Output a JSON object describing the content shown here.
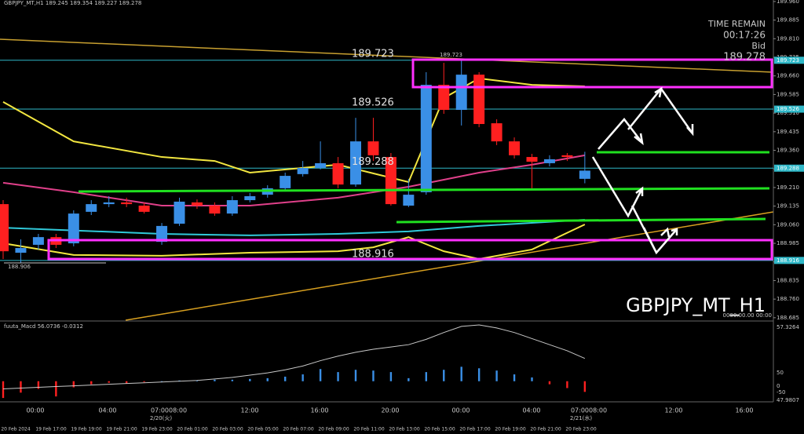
{
  "chart_data": {
    "type": "candlestick",
    "symbol": "GBPJPY_MT,H1",
    "watermark": "GBPJPY_MT_H1",
    "time_remain_label": "TIME REMAIN",
    "time_remain": "00:17:26",
    "bid_label": "Bid",
    "date_marker": "0000.00.00 00:00",
    "up_color": "#3a8fe6",
    "down_color": "#ff2020",
    "open": [
      189.143,
      188.947,
      188.979,
      189.01,
      188.985,
      189.112,
      189.143,
      189.15,
      189.137,
      188.991,
      189.064,
      189.15,
      189.137,
      189.105,
      189.159,
      189.181,
      189.207,
      189.264,
      189.289,
      189.308,
      189.222,
      189.396,
      189.333,
      189.137,
      189.191,
      189.624,
      189.523,
      189.665,
      189.469,
      189.396,
      189.333,
      189.308,
      189.34,
      189.245
    ],
    "high": [
      189.159,
      189.001,
      189.023,
      189.023,
      189.118,
      189.159,
      189.175,
      189.169,
      189.15,
      189.067,
      189.169,
      189.162,
      189.15,
      189.175,
      189.188,
      189.219,
      189.27,
      189.317,
      189.396,
      189.333,
      189.491,
      189.491,
      189.349,
      189.245,
      189.675,
      189.713,
      189.723,
      189.675,
      189.485,
      189.412,
      189.346,
      189.34,
      189.349,
      189.354
    ],
    "low": [
      188.922,
      188.906,
      188.96,
      188.966,
      188.973,
      189.099,
      189.131,
      189.131,
      189.105,
      188.979,
      189.055,
      189.124,
      189.096,
      189.096,
      189.15,
      189.169,
      189.194,
      189.254,
      189.283,
      189.207,
      189.213,
      189.317,
      189.137,
      189.131,
      189.181,
      189.507,
      189.46,
      189.453,
      189.381,
      189.327,
      189.207,
      189.295,
      189.317,
      189.227
    ],
    "close": [
      188.953,
      188.966,
      189.01,
      188.979,
      189.105,
      189.143,
      189.15,
      189.143,
      189.112,
      189.055,
      189.153,
      189.137,
      189.105,
      189.159,
      189.175,
      189.207,
      189.257,
      189.289,
      189.308,
      189.222,
      189.396,
      189.34,
      189.143,
      189.181,
      189.624,
      189.523,
      189.665,
      189.466,
      189.396,
      189.34,
      189.314,
      189.324,
      189.333,
      189.278
    ],
    "ylim": [
      188.675,
      189.966
    ],
    "yticks": [
      188.685,
      {
        "value": 188.76,
        "label": "188.760"
      },
      188.835,
      {
        "value": 188.91,
        "label": "188.910"
      },
      188.985,
      {
        "value": 189.06,
        "label": "189.060"
      },
      189.135,
      {
        "value": 189.21,
        "label": "189.210"
      },
      189.285,
      {
        "value": 189.36,
        "label": "189.360"
      },
      189.435,
      {
        "value": 189.51,
        "label": "189.510"
      },
      189.585,
      {
        "value": 189.66,
        "label": "189.660"
      },
      189.735,
      {
        "value": 189.81,
        "label": "189.810"
      },
      189.885,
      {
        "value": 189.96,
        "label": "189.960"
      }
    ],
    "levels": [
      189.723,
      189.526,
      189.288,
      188.916
    ],
    "level_color": "#2fb8c8",
    "high_label": 189.723,
    "low_label": 188.906,
    "indicators": [
      {
        "color": "#f2e640",
        "x": [
          0,
          4,
          9,
          12,
          14,
          19,
          23,
          25,
          27,
          30,
          33
        ],
        "values": [
          189.555,
          189.396,
          189.333,
          189.317,
          189.27,
          189.302,
          189.232,
          189.571,
          189.65,
          189.624,
          189.618
        ]
      },
      {
        "color": "#e0408a",
        "x": [
          0,
          4,
          9,
          14,
          19,
          23,
          27,
          30,
          33
        ],
        "values": [
          189.229,
          189.191,
          189.137,
          189.137,
          189.169,
          189.213,
          189.27,
          189.302,
          189.34
        ]
      },
      {
        "color": "#30c8d8",
        "x": [
          0,
          9,
          14,
          19,
          23,
          27,
          33
        ],
        "values": [
          189.048,
          189.023,
          189.017,
          189.023,
          189.033,
          189.055,
          189.08
        ]
      },
      {
        "color": "#f2e640",
        "x": [
          0,
          4,
          9,
          14,
          19,
          21,
          23,
          25,
          27,
          30,
          33
        ],
        "values": [
          188.985,
          188.938,
          188.935,
          188.947,
          188.953,
          188.969,
          189.01,
          188.953,
          188.922,
          188.96,
          189.061
        ]
      }
    ],
    "time_labels": [
      "00:00",
      "04:00",
      "07:0008:00",
      "12:00",
      "16:00",
      "20:00",
      "00:00",
      "04:00",
      "07:0008:00",
      "12:00",
      "16:00"
    ],
    "day_labels": [
      "2/20(火)",
      "2/21(水)"
    ],
    "date_row": [
      "20 Feb 2024",
      "19 Feb 17:00",
      "19 Feb 19:00",
      "19 Feb 21:00",
      "19 Feb 23:00",
      "20 Feb 01:00",
      "20 Feb 03:00",
      "20 Feb 05:00",
      "20 Feb 07:00",
      "20 Feb 09:00",
      "20 Feb 11:00",
      "20 Feb 13:00",
      "20 Feb 15:00",
      "20 Feb 17:00",
      "20 Feb 19:00",
      "20 Feb 21:00",
      "20 Feb 23:00"
    ],
    "macd": {
      "title": "fuuta_Macd 56.0736 -0.0312",
      "ylim": [
        -25,
        75
      ],
      "axis_labels": [
        "57.3264",
        "50",
        "0",
        "-50",
        "47.9807"
      ],
      "histogram": [
        -22,
        -15,
        -10,
        -20,
        -8,
        -4,
        -2,
        -3,
        -1,
        0,
        1,
        1,
        2,
        2,
        3,
        4,
        6,
        9,
        16,
        12,
        15,
        14,
        12,
        4,
        12,
        15,
        19,
        17,
        14,
        9,
        5,
        -4,
        -9,
        -14
      ],
      "signal": [
        -10,
        -9,
        -8,
        -7,
        -6,
        -5,
        -4,
        -3,
        -2,
        -1,
        0,
        1,
        3,
        5,
        8,
        11,
        15,
        20,
        27,
        33,
        38,
        42,
        45,
        48,
        55,
        64,
        72,
        74,
        70,
        64,
        56,
        48,
        40,
        30
      ],
      "signal_color": "#c8c8c8"
    }
  }
}
